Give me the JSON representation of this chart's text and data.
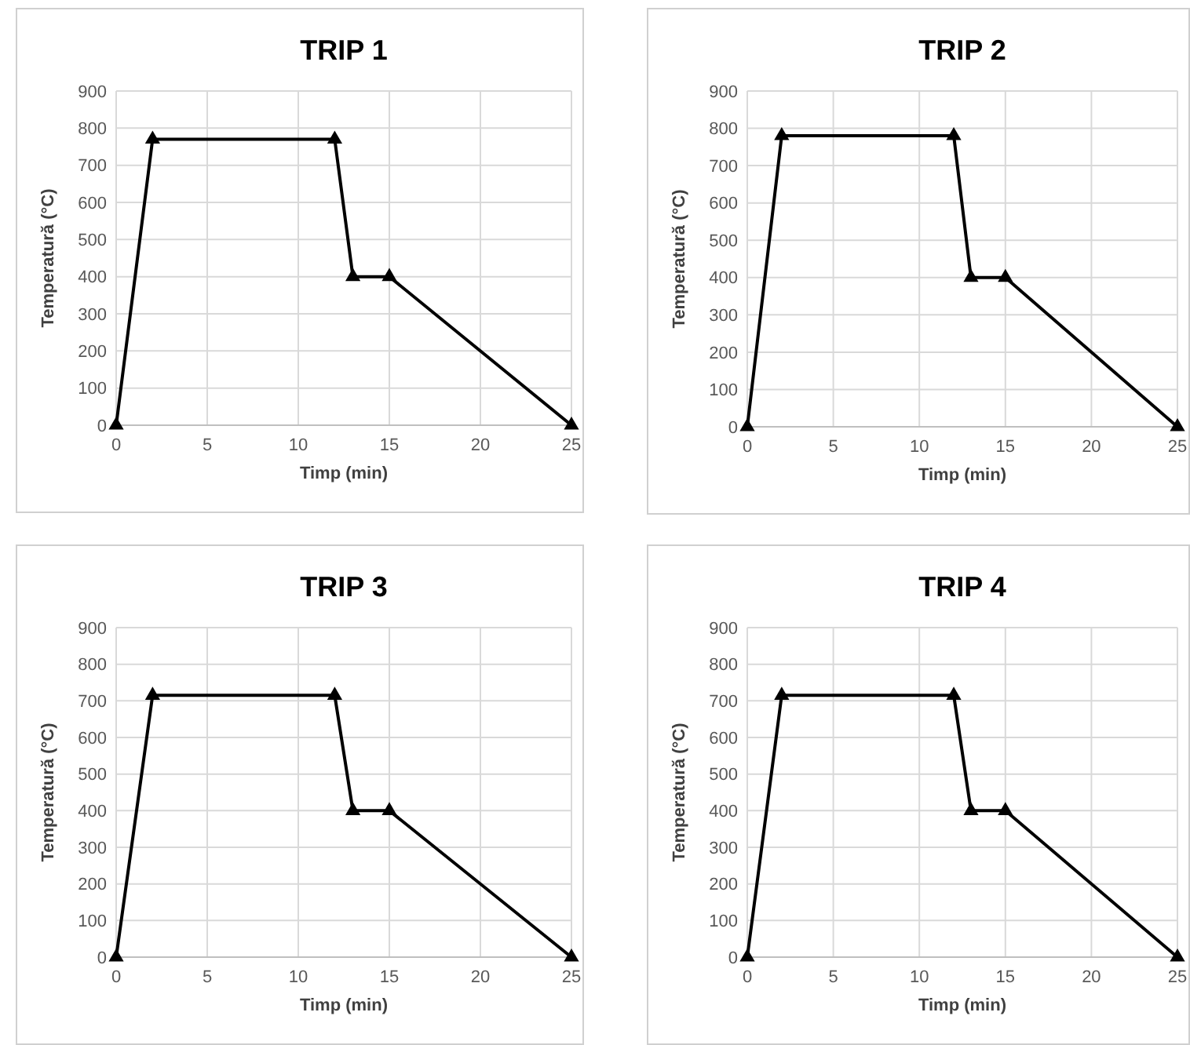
{
  "chart_data": [
    {
      "type": "line",
      "title": "TRIP 1",
      "xlabel": "Timp (min)",
      "ylabel": "Temperatură (°C)",
      "x": [
        0,
        2,
        12,
        13,
        15,
        25
      ],
      "series": [
        {
          "color": "#000000",
          "values": [
            0,
            770,
            770,
            400,
            400,
            0
          ]
        }
      ],
      "xlim": [
        0,
        25
      ],
      "ylim": [
        0,
        900
      ],
      "xticks": [
        0,
        5,
        10,
        15,
        20,
        25
      ],
      "yticks": [
        0,
        100,
        200,
        300,
        400,
        500,
        600,
        700,
        800,
        900
      ],
      "grid": true,
      "marker": "triangle",
      "line_style": "solid"
    },
    {
      "type": "line",
      "title": "TRIP 2",
      "xlabel": "Timp (min)",
      "ylabel": "Temperatură (°C)",
      "x": [
        0,
        2,
        12,
        13,
        15,
        25
      ],
      "series": [
        {
          "color": "#000000",
          "values": [
            0,
            780,
            780,
            400,
            400,
            0
          ]
        }
      ],
      "xlim": [
        0,
        25
      ],
      "ylim": [
        0,
        900
      ],
      "xticks": [
        0,
        5,
        10,
        15,
        20,
        25
      ],
      "yticks": [
        0,
        100,
        200,
        300,
        400,
        500,
        600,
        700,
        800,
        900
      ],
      "grid": true,
      "marker": "triangle",
      "line_style": "solid"
    },
    {
      "type": "line",
      "title": "TRIP 3",
      "xlabel": "Timp (min)",
      "ylabel": "Temperatură (°C)",
      "x": [
        0,
        2,
        12,
        13,
        15,
        25
      ],
      "series": [
        {
          "color": "#000000",
          "values": [
            0,
            715,
            715,
            400,
            400,
            0
          ]
        }
      ],
      "xlim": [
        0,
        25
      ],
      "ylim": [
        0,
        900
      ],
      "xticks": [
        0,
        5,
        10,
        15,
        20,
        25
      ],
      "yticks": [
        0,
        100,
        200,
        300,
        400,
        500,
        600,
        700,
        800,
        900
      ],
      "grid": true,
      "marker": "triangle",
      "line_style": "solid"
    },
    {
      "type": "line",
      "title": "TRIP 4",
      "xlabel": "Timp (min)",
      "ylabel": "Temperatură (°C)",
      "x": [
        0,
        2,
        12,
        13,
        15,
        25
      ],
      "series": [
        {
          "color": "#000000",
          "values": [
            0,
            715,
            715,
            400,
            400,
            0
          ]
        }
      ],
      "xlim": [
        0,
        25
      ],
      "ylim": [
        0,
        900
      ],
      "xticks": [
        0,
        5,
        10,
        15,
        20,
        25
      ],
      "yticks": [
        0,
        100,
        200,
        300,
        400,
        500,
        600,
        700,
        800,
        900
      ],
      "grid": true,
      "marker": "triangle",
      "line_style": "solid"
    }
  ]
}
